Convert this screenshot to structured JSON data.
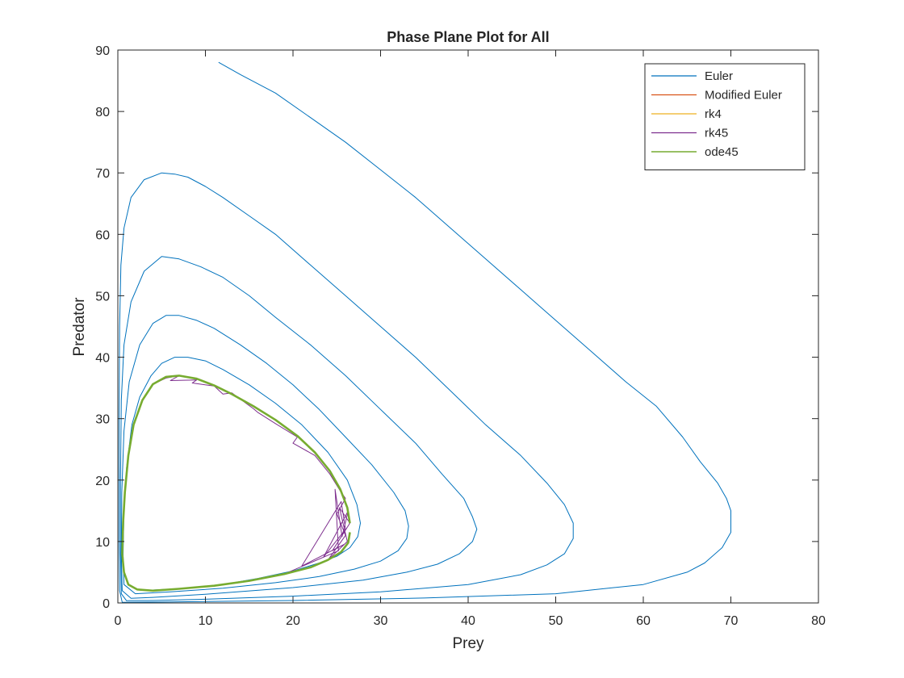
{
  "chart_data": {
    "type": "line",
    "title": "Phase Plane Plot for All",
    "xlabel": "Prey",
    "ylabel": "Predator",
    "xlim": [
      0,
      80
    ],
    "ylim": [
      0,
      90
    ],
    "xticks": [
      "0",
      "10",
      "20",
      "30",
      "40",
      "50",
      "60",
      "70",
      "80"
    ],
    "yticks": [
      "0",
      "10",
      "20",
      "30",
      "40",
      "50",
      "60",
      "70",
      "80",
      "90"
    ],
    "grid": false,
    "legend_position": "top-right",
    "series": [
      {
        "name": "Euler",
        "color": "#0072BD",
        "points": [
          [
            11.5,
            88
          ],
          [
            14,
            86
          ],
          [
            18,
            83
          ],
          [
            22,
            79
          ],
          [
            26,
            75
          ],
          [
            30,
            70.5
          ],
          [
            34,
            66
          ],
          [
            38,
            61
          ],
          [
            42,
            56
          ],
          [
            46,
            51
          ],
          [
            50,
            46
          ],
          [
            54,
            41
          ],
          [
            58,
            36
          ],
          [
            61.5,
            32
          ],
          [
            64.5,
            27
          ],
          [
            66.5,
            23
          ],
          [
            68.5,
            19.5
          ],
          [
            69.5,
            17
          ],
          [
            70,
            15
          ],
          [
            70,
            11.5
          ],
          [
            69,
            9
          ],
          [
            67,
            6.5
          ],
          [
            65,
            5
          ],
          [
            60,
            3
          ],
          [
            50,
            1.5
          ],
          [
            35,
            0.8
          ],
          [
            20,
            0.4
          ],
          [
            5,
            0.15
          ],
          [
            0.5,
            0.1
          ],
          [
            0.2,
            2
          ],
          [
            0.15,
            10
          ],
          [
            0.15,
            30
          ],
          [
            0.2,
            45
          ],
          [
            0.35,
            55
          ],
          [
            0.7,
            61
          ],
          [
            1.5,
            66
          ],
          [
            3,
            68.9
          ],
          [
            5,
            70
          ],
          [
            6.5,
            69.8
          ],
          [
            8,
            69.3
          ],
          [
            10,
            67.8
          ],
          [
            12,
            66
          ],
          [
            15,
            63
          ],
          [
            18,
            60
          ],
          [
            22,
            55
          ],
          [
            26,
            50
          ],
          [
            30,
            45
          ],
          [
            34,
            40
          ],
          [
            38,
            34.5
          ],
          [
            42,
            29
          ],
          [
            46,
            24
          ],
          [
            49,
            19.5
          ],
          [
            51,
            16
          ],
          [
            52,
            13
          ],
          [
            52,
            10.5
          ],
          [
            51,
            8
          ],
          [
            49,
            6.2
          ],
          [
            46,
            4.6
          ],
          [
            40,
            3
          ],
          [
            30,
            1.8
          ],
          [
            20,
            1.1
          ],
          [
            10,
            0.6
          ],
          [
            4,
            0.4
          ],
          [
            1,
            0.35
          ],
          [
            0.4,
            1.5
          ],
          [
            0.3,
            8
          ],
          [
            0.3,
            20
          ],
          [
            0.4,
            33
          ],
          [
            0.7,
            42
          ],
          [
            1.5,
            49
          ],
          [
            3,
            54
          ],
          [
            5,
            56.4
          ],
          [
            7,
            56
          ],
          [
            9.5,
            54.7
          ],
          [
            12,
            53
          ],
          [
            15,
            50
          ],
          [
            18,
            46.5
          ],
          [
            22,
            42
          ],
          [
            26,
            37
          ],
          [
            30,
            31.5
          ],
          [
            34,
            26
          ],
          [
            37,
            21
          ],
          [
            39.5,
            17
          ],
          [
            40.5,
            14
          ],
          [
            41,
            12
          ],
          [
            40.5,
            10
          ],
          [
            39,
            8
          ],
          [
            36.5,
            6.3
          ],
          [
            33,
            5
          ],
          [
            28,
            3.7
          ],
          [
            20,
            2.5
          ],
          [
            10,
            1.4
          ],
          [
            4,
            0.9
          ],
          [
            1.5,
            0.75
          ],
          [
            0.5,
            2
          ],
          [
            0.4,
            8
          ],
          [
            0.45,
            18
          ],
          [
            0.7,
            28
          ],
          [
            1.3,
            36
          ],
          [
            2.5,
            42
          ],
          [
            4,
            45.5
          ],
          [
            5.5,
            46.8
          ],
          [
            7,
            46.8
          ],
          [
            9,
            46
          ],
          [
            11,
            44.7
          ],
          [
            14,
            42
          ],
          [
            17,
            39
          ],
          [
            20,
            35.5
          ],
          [
            23,
            31.5
          ],
          [
            26,
            27
          ],
          [
            29,
            22.5
          ],
          [
            31.5,
            18
          ],
          [
            32.8,
            15
          ],
          [
            33.2,
            12.5
          ],
          [
            33,
            10.5
          ],
          [
            32,
            8.5
          ],
          [
            30,
            6.8
          ],
          [
            27,
            5.5
          ],
          [
            23,
            4.3
          ],
          [
            18,
            3.3
          ],
          [
            12,
            2.4
          ],
          [
            6,
            1.8
          ],
          [
            2,
            1.5
          ],
          [
            0.7,
            3
          ],
          [
            0.6,
            8
          ],
          [
            0.7,
            15
          ],
          [
            1,
            22
          ],
          [
            1.6,
            29
          ],
          [
            2.5,
            33.5
          ],
          [
            3.8,
            37
          ],
          [
            5,
            39
          ],
          [
            6.5,
            40
          ],
          [
            8,
            40
          ],
          [
            10,
            39.4
          ],
          [
            12,
            38
          ],
          [
            15,
            35.5
          ],
          [
            18,
            32.5
          ],
          [
            21,
            29
          ],
          [
            24,
            24.5
          ],
          [
            26.2,
            20
          ],
          [
            27.3,
            16
          ],
          [
            27.7,
            13
          ],
          [
            27.4,
            10.8
          ],
          [
            26.5,
            9
          ],
          [
            25,
            7.6
          ],
          [
            23,
            6.5
          ],
          [
            20,
            5.2
          ],
          [
            16,
            4
          ],
          [
            12,
            3
          ],
          [
            8,
            2.4
          ],
          [
            4,
            2.1
          ]
        ]
      },
      {
        "name": "Modified Euler",
        "color": "#D95319",
        "points": [
          [
            26.5,
            11.5
          ],
          [
            26.3,
            9.8
          ],
          [
            25.5,
            8.3
          ],
          [
            24,
            7
          ],
          [
            22,
            5.8
          ],
          [
            19,
            4.7
          ],
          [
            15,
            3.6
          ],
          [
            11,
            2.8
          ],
          [
            7,
            2.3
          ],
          [
            4,
            2
          ],
          [
            2.2,
            2.2
          ],
          [
            1.2,
            3
          ],
          [
            0.7,
            5
          ],
          [
            0.5,
            8
          ],
          [
            0.6,
            13
          ],
          [
            0.8,
            18
          ],
          [
            1.2,
            24
          ],
          [
            1.8,
            29
          ],
          [
            2.8,
            33
          ],
          [
            4,
            35.6
          ],
          [
            5.5,
            36.8
          ],
          [
            7,
            37
          ],
          [
            9,
            36.5
          ],
          [
            11,
            35.4
          ],
          [
            13,
            34
          ],
          [
            15.5,
            32
          ],
          [
            18,
            29.8
          ],
          [
            20.5,
            27.2
          ],
          [
            22.5,
            24.5
          ],
          [
            24.2,
            21.5
          ],
          [
            25.4,
            18.5
          ],
          [
            26.2,
            15.5
          ],
          [
            26.5,
            13
          ]
        ]
      },
      {
        "name": "rk4",
        "color": "#EDB120",
        "points": [
          [
            26.5,
            11.5
          ],
          [
            26.3,
            9.8
          ],
          [
            25.5,
            8.3
          ],
          [
            24,
            7
          ],
          [
            22,
            5.8
          ],
          [
            19,
            4.7
          ],
          [
            15,
            3.6
          ],
          [
            11,
            2.8
          ],
          [
            7,
            2.3
          ],
          [
            4,
            2
          ],
          [
            2.2,
            2.2
          ],
          [
            1.2,
            3
          ],
          [
            0.7,
            5
          ],
          [
            0.5,
            8
          ],
          [
            0.6,
            13
          ],
          [
            0.8,
            18
          ],
          [
            1.2,
            24
          ],
          [
            1.8,
            29
          ],
          [
            2.8,
            33
          ],
          [
            4,
            35.6
          ],
          [
            5.5,
            36.8
          ],
          [
            7,
            37
          ],
          [
            9,
            36.5
          ],
          [
            11,
            35.4
          ],
          [
            13,
            34
          ],
          [
            15.5,
            32
          ],
          [
            18,
            29.8
          ],
          [
            20.5,
            27.2
          ],
          [
            22.5,
            24.5
          ],
          [
            24.2,
            21.5
          ],
          [
            25.4,
            18.5
          ],
          [
            26.2,
            15.5
          ],
          [
            26.5,
            13
          ]
        ]
      },
      {
        "name": "rk45",
        "color": "#7E2F8E",
        "points": [
          [
            26,
            17
          ],
          [
            25,
            14.5
          ],
          [
            26,
            11
          ],
          [
            24,
            7
          ],
          [
            26.2,
            10
          ],
          [
            25.3,
            15.5
          ],
          [
            26.5,
            13
          ],
          [
            24.5,
            8.5
          ],
          [
            25.8,
            9.5
          ],
          [
            21,
            6
          ],
          [
            25.5,
            16.5
          ],
          [
            26,
            12
          ],
          [
            23.5,
            7.5
          ],
          [
            26.3,
            15
          ],
          [
            25.6,
            10.8
          ],
          [
            24.8,
            18.5
          ],
          [
            25.2,
            8.5
          ],
          [
            19,
            4.7
          ],
          [
            15,
            3.6
          ],
          [
            11,
            2.8
          ],
          [
            7,
            2.3
          ],
          [
            4,
            2
          ],
          [
            2.2,
            2.2
          ],
          [
            1.2,
            3
          ],
          [
            0.7,
            5
          ],
          [
            0.5,
            8
          ],
          [
            0.6,
            13
          ],
          [
            0.8,
            18
          ],
          [
            1.2,
            24
          ],
          [
            1.8,
            29
          ],
          [
            2.8,
            33
          ],
          [
            4,
            35.6
          ],
          [
            5.5,
            36.6
          ],
          [
            7,
            37
          ],
          [
            6,
            36.2
          ],
          [
            9,
            36.3
          ],
          [
            8.5,
            35.8
          ],
          [
            11,
            35.3
          ],
          [
            12,
            34
          ],
          [
            13,
            34.2
          ],
          [
            15.5,
            31.6
          ],
          [
            16,
            31
          ],
          [
            18,
            29.2
          ],
          [
            20.5,
            27
          ],
          [
            20,
            26
          ],
          [
            22.5,
            24
          ],
          [
            24.2,
            21
          ],
          [
            25.5,
            18
          ],
          [
            26,
            17
          ]
        ]
      },
      {
        "name": "ode45",
        "color": "#77AC30",
        "points": [
          [
            26.5,
            11.5
          ],
          [
            26.3,
            9.8
          ],
          [
            25.5,
            8.3
          ],
          [
            24,
            7
          ],
          [
            22,
            5.8
          ],
          [
            19,
            4.7
          ],
          [
            15,
            3.6
          ],
          [
            11,
            2.8
          ],
          [
            7,
            2.3
          ],
          [
            4,
            2
          ],
          [
            2.2,
            2.2
          ],
          [
            1.2,
            3
          ],
          [
            0.7,
            5
          ],
          [
            0.5,
            8
          ],
          [
            0.6,
            13
          ],
          [
            0.8,
            18
          ],
          [
            1.2,
            24
          ],
          [
            1.8,
            29
          ],
          [
            2.8,
            33
          ],
          [
            4,
            35.6
          ],
          [
            5.5,
            36.8
          ],
          [
            7,
            37
          ],
          [
            9,
            36.5
          ],
          [
            11,
            35.4
          ],
          [
            13,
            34
          ],
          [
            15.5,
            32
          ],
          [
            18,
            29.8
          ],
          [
            20.5,
            27.2
          ],
          [
            22.5,
            24.5
          ],
          [
            24.2,
            21.5
          ],
          [
            25.4,
            18.5
          ],
          [
            26.2,
            15.5
          ],
          [
            26.5,
            13
          ]
        ]
      }
    ]
  }
}
